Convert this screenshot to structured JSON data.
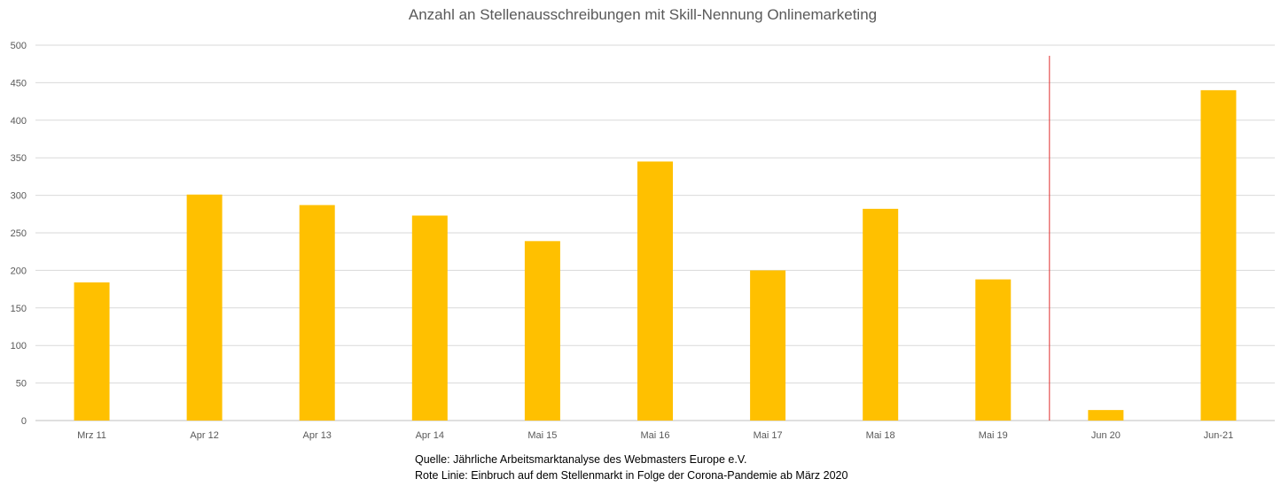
{
  "chart_data": {
    "type": "bar",
    "title": "Anzahl an Stellenausschreibungen mit Skill-Nennung Onlinemarketing",
    "categories": [
      "Mrz 11",
      "Apr 12",
      "Apr 13",
      "Apr 14",
      "Mai 15",
      "Mai 16",
      "Mai 17",
      "Mai 18",
      "Mai 19",
      "Jun 20",
      "Jun-21"
    ],
    "values": [
      184,
      301,
      287,
      273,
      239,
      345,
      200,
      282,
      188,
      14,
      440
    ],
    "ylim": [
      0,
      500
    ],
    "yticks": [
      "0",
      "50",
      "100",
      "150",
      "200",
      "250",
      "300",
      "350",
      "400",
      "450",
      "500"
    ],
    "grid": true,
    "bar_color": "#FFC000",
    "marker_line": {
      "between": [
        "Mai 19",
        "Jun 20"
      ],
      "color": "#E03030"
    },
    "notes": [
      "Quelle: Jährliche Arbeitsmarktanalyse des Webmasters Europe e.V.",
      "Rote Linie: Einbruch auf dem Stellenmarkt in Folge der Corona-Pandemie ab März 2020"
    ]
  }
}
